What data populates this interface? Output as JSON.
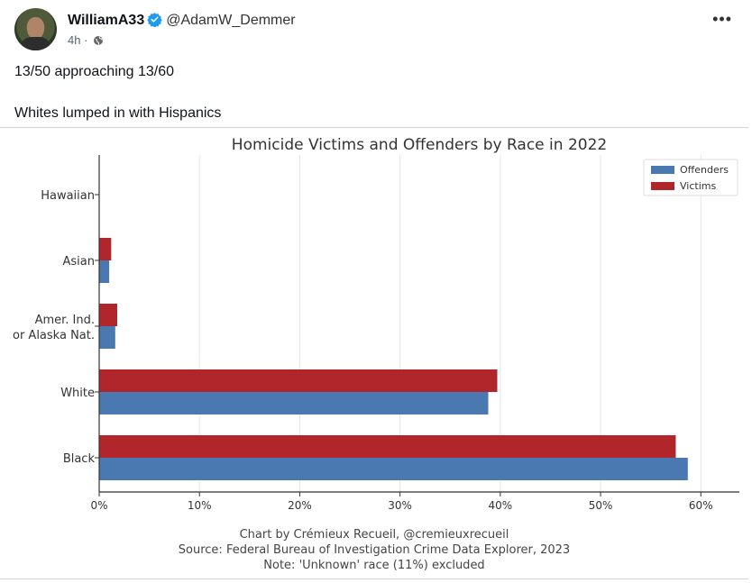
{
  "post": {
    "display_name": "WilliamA33",
    "handle": "@AdamW_Demmer",
    "time": "4h",
    "time_separator": "·",
    "text_line_1": "13/50 approaching 13/60",
    "text_line_2": "Whites lumped in with Hispanics",
    "more_label": "•••",
    "colors": {
      "verified": "#1d9bf0"
    }
  },
  "chart_data": {
    "type": "bar",
    "orientation": "horizontal",
    "title": "Homicide Victims and Offenders by Race in 2022",
    "categories": [
      "Hawaiian",
      "Asian",
      "Amer. Ind.\nor Alaska Nat.",
      "White",
      "Black"
    ],
    "series": [
      {
        "name": "Offenders",
        "color": "#4a78b0",
        "values": [
          0.0,
          1.0,
          1.6,
          38.8,
          58.7
        ]
      },
      {
        "name": "Victims",
        "color": "#b0262b",
        "values": [
          0.0,
          1.2,
          1.8,
          39.7,
          57.5
        ]
      }
    ],
    "xlim": [
      0,
      62
    ],
    "xticks": [
      0,
      10,
      20,
      30,
      40,
      50,
      60
    ],
    "xtick_labels": [
      "0%",
      "10%",
      "20%",
      "30%",
      "40%",
      "50%",
      "60%"
    ],
    "legend_position": "top-right",
    "grid": true,
    "footer": [
      "Chart by Crémieux Recueil, @cremieuxrecueil",
      "Source: Federal Bureau of Investigation Crime Data Explorer, 2023",
      "Note: 'Unknown' race (11%) excluded"
    ]
  }
}
